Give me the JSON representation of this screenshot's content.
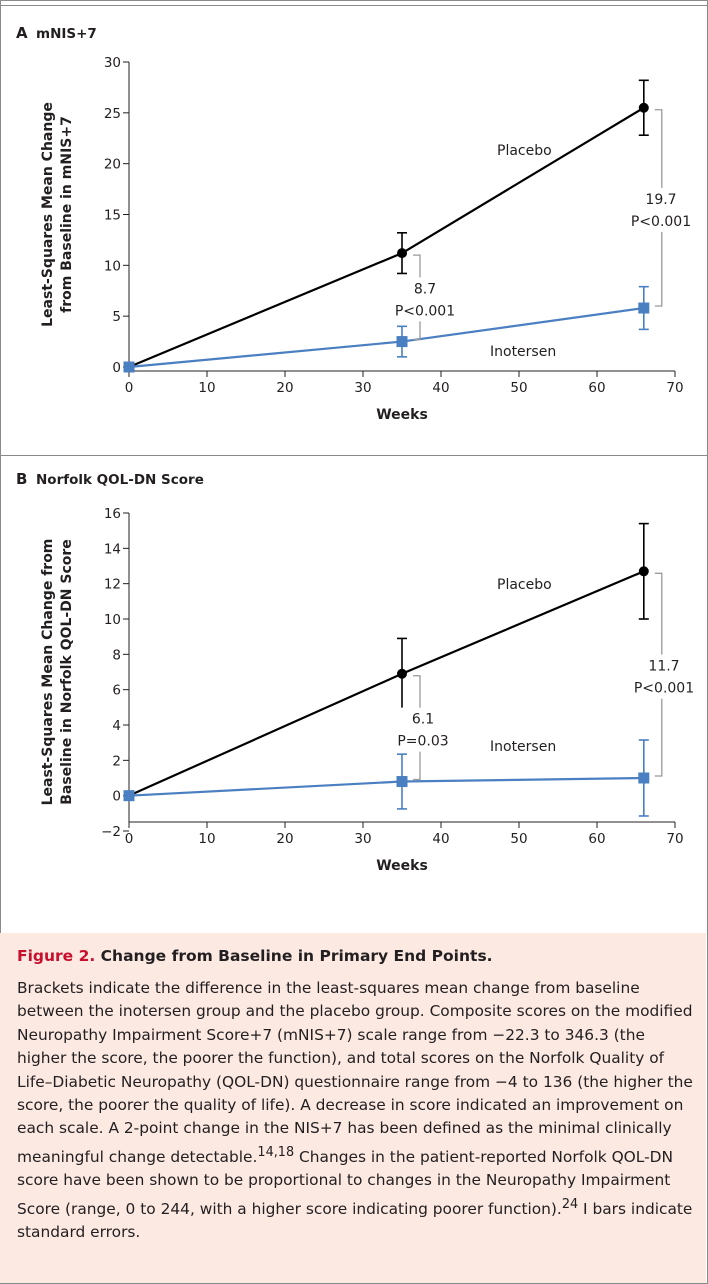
{
  "chart_data": [
    {
      "type": "line",
      "panel_letter": "A",
      "title": "mNIS+7",
      "xlabel": "Weeks",
      "ylabel_lines": [
        "Least-Squares Mean Change",
        "from Baseline in mNIS+7"
      ],
      "xlim": [
        0,
        70
      ],
      "ylim": [
        0,
        30
      ],
      "x_ticks": [
        0,
        10,
        20,
        30,
        40,
        50,
        60,
        70
      ],
      "y_ticks": [
        0,
        5,
        10,
        15,
        20,
        25,
        30
      ],
      "series": [
        {
          "name": "Placebo",
          "color": "#000000",
          "marker": "circle",
          "x": [
            0,
            35,
            66
          ],
          "y": [
            0,
            11.2,
            25.5
          ],
          "se": [
            0,
            2.0,
            2.7
          ]
        },
        {
          "name": "Inotersen",
          "color": "#4a7fc1",
          "marker": "square",
          "x": [
            0,
            35,
            66
          ],
          "y": [
            0,
            2.5,
            5.8
          ],
          "se": [
            0,
            1.5,
            2.1
          ]
        }
      ],
      "annotations": [
        {
          "week": 35,
          "text": [
            "8.7",
            "P<0.001"
          ]
        },
        {
          "week": 66,
          "text": [
            "19.7",
            "P<0.001"
          ]
        }
      ]
    },
    {
      "type": "line",
      "panel_letter": "B",
      "title": "Norfolk QOL-DN Score",
      "xlabel": "Weeks",
      "ylabel_lines": [
        "Least-Squares Mean Change from",
        "Baseline in Norfolk QOL-DN Score"
      ],
      "xlim": [
        0,
        70
      ],
      "ylim": [
        -2,
        16
      ],
      "x_ticks": [
        0,
        10,
        20,
        30,
        40,
        50,
        60,
        70
      ],
      "y_ticks": [
        -2,
        0,
        2,
        4,
        6,
        8,
        10,
        12,
        14,
        16
      ],
      "series": [
        {
          "name": "Placebo",
          "color": "#000000",
          "marker": "circle",
          "x": [
            0,
            35,
            66
          ],
          "y": [
            0,
            6.9,
            12.7
          ],
          "se": [
            0,
            2.0,
            2.7
          ]
        },
        {
          "name": "Inotersen",
          "color": "#4a7fc1",
          "marker": "square",
          "x": [
            0,
            35,
            66
          ],
          "y": [
            0,
            0.8,
            1.0
          ],
          "se": [
            0,
            1.55,
            2.15
          ]
        }
      ],
      "annotations": [
        {
          "week": 35,
          "text": [
            "6.1",
            "P=0.03"
          ]
        },
        {
          "week": 66,
          "text": [
            "11.7",
            "P<0.001"
          ]
        }
      ]
    }
  ],
  "caption": {
    "figure_label": "Figure 2.",
    "title": "Change from Baseline in Primary End Points.",
    "body_html": "Brackets indicate the difference in the least-squares mean change from baseline between the inotersen group and the placebo group. Composite scores on the modified Neuropathy Impairment Score+7 (mNIS+7) scale range from −22.3 to 346.3 (the higher the score, the poorer the function), and total scores on the Norfolk Quality of Life–Diabetic Neuropathy (QOL-DN) questionnaire range from −4 to 136 (the higher the score, the poorer the quality of life). A decrease in score indicated an improvement on each scale. A 2-point change in the NIS+7 has been defined as the minimal clinically meaningful change detectable.<sup>14,18</sup> Changes in the patient-reported Norfolk QOL-DN score have been shown to be proportional to changes in the Neuropathy Impairment Score (range, 0 to 244, with a higher score indicating poorer function).<sup>24</sup> I bars indicate standard errors."
  }
}
